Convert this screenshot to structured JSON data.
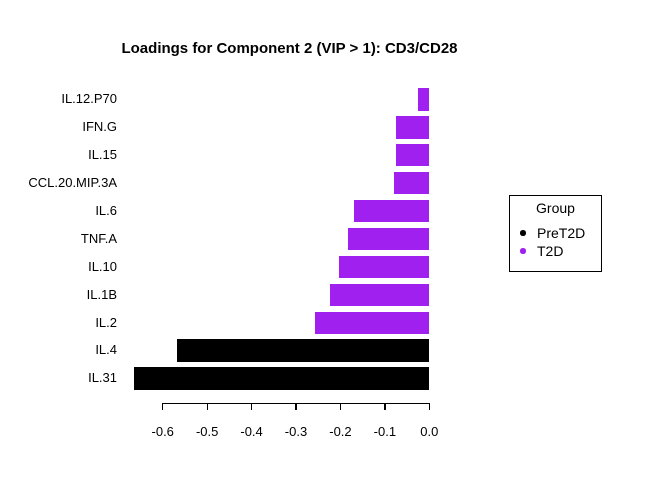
{
  "chart_data": {
    "type": "bar",
    "orientation": "horizontal",
    "title": "Loadings for Component 2 (VIP > 1): CD3/CD28",
    "categories": [
      "IL.12.P70",
      "IFN.G",
      "IL.15",
      "CCL.20.MIP.3A",
      "IL.6",
      "TNF.A",
      "IL.10",
      "IL.1B",
      "IL.2",
      "IL.4",
      "IL.31"
    ],
    "values": [
      -0.026,
      -0.075,
      -0.075,
      -0.079,
      -0.169,
      -0.184,
      -0.203,
      -0.223,
      -0.257,
      -0.568,
      -0.665
    ],
    "groups": [
      "T2D",
      "T2D",
      "T2D",
      "T2D",
      "T2D",
      "T2D",
      "T2D",
      "T2D",
      "T2D",
      "PreT2D",
      "PreT2D"
    ],
    "group_colors": {
      "PreT2D": "#000000",
      "T2D": "#A020F0"
    },
    "xlabel": "",
    "ylabel": "",
    "xlim": [
      -0.67,
      0.0
    ],
    "x_tick_values": [
      -0.6,
      -0.5,
      -0.4,
      -0.3,
      -0.2,
      -0.1,
      0.0
    ],
    "x_tick_labels": [
      "-0.6",
      "-0.5",
      "-0.4",
      "-0.3",
      "-0.2",
      "-0.1",
      "0.0"
    ],
    "grid": false,
    "legend": {
      "title": "Group",
      "position": "right",
      "items": [
        {
          "label": "PreT2D",
          "color": "#000000"
        },
        {
          "label": "T2D",
          "color": "#A020F0"
        }
      ]
    },
    "background_color": "#FFFFFF",
    "axis_color": "#000000"
  }
}
